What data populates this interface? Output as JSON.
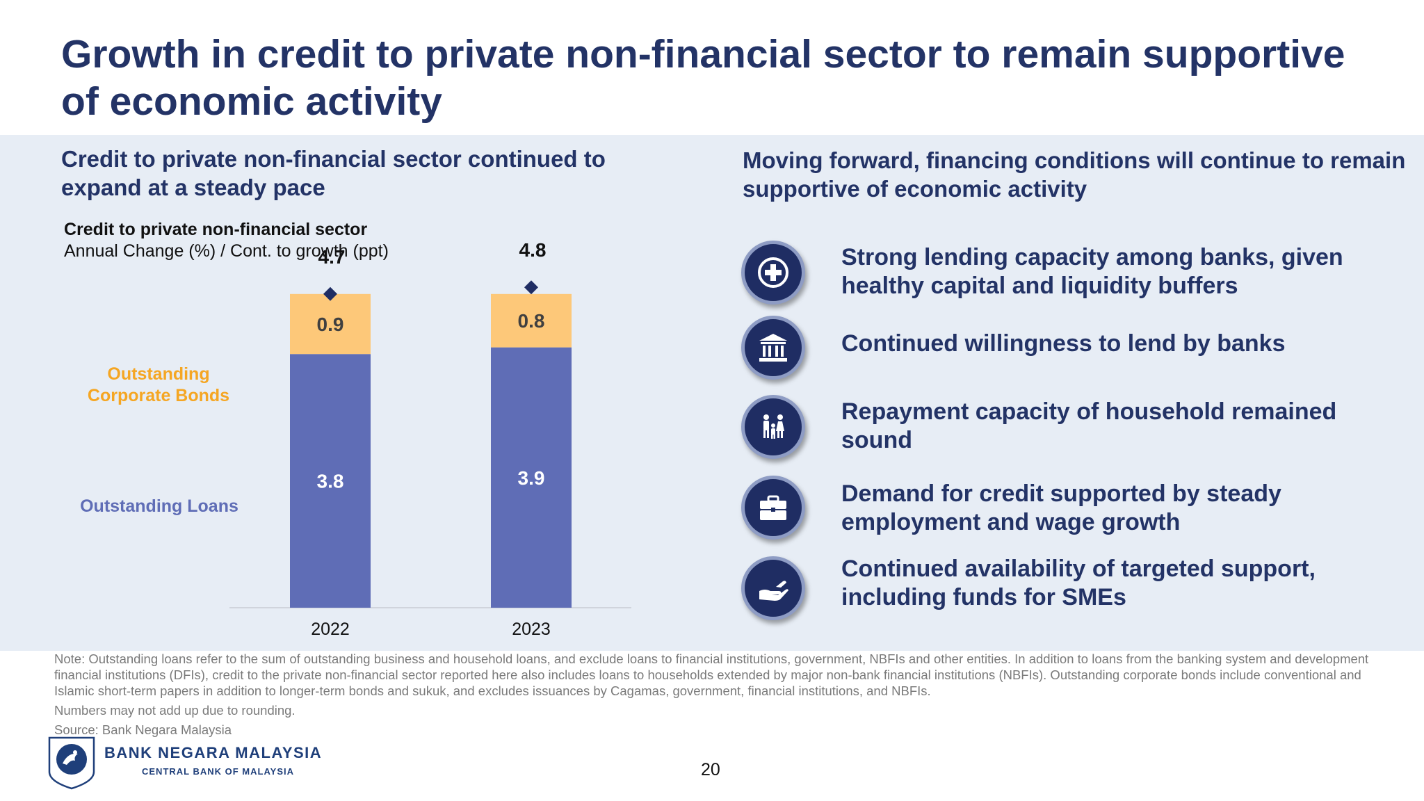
{
  "slide": {
    "title": "Growth in credit to private non-financial sector to remain supportive of economic activity",
    "page_number": "20"
  },
  "left": {
    "heading": "Credit to private non-financial sector continued to expand at a steady pace"
  },
  "right": {
    "heading": "Moving forward, financing conditions will continue to remain supportive of economic activity",
    "items": [
      {
        "icon": "medical-cross-icon",
        "text": "Strong lending capacity among banks, given healthy capital and liquidity buffers"
      },
      {
        "icon": "bank-building-icon",
        "text": "Continued willingness to lend by banks"
      },
      {
        "icon": "family-icon",
        "text": "Repayment capacity of household remained sound"
      },
      {
        "icon": "briefcase-icon",
        "text": "Demand for credit supported by steady employment and wage growth"
      },
      {
        "icon": "helping-hand-icon",
        "text": "Continued availability of targeted support, including funds for SMEs"
      }
    ]
  },
  "chart_data": {
    "type": "bar",
    "stacked": true,
    "title": "Credit to private non-financial sector",
    "subtitle": "Annual Change (%) / Cont. to growth (ppt)",
    "categories": [
      "2022",
      "2023"
    ],
    "series": [
      {
        "name": "Outstanding Loans",
        "values": [
          3.8,
          3.9
        ],
        "color": "#5f6db6",
        "label_color": "#5f6db6",
        "value_text_color": "#ffffff"
      },
      {
        "name": "Outstanding Corporate Bonds",
        "values": [
          0.9,
          0.8
        ],
        "color": "#fdc879",
        "label_color": "#f5a623",
        "value_text_color": "#404040"
      }
    ],
    "totals": [
      4.7,
      4.8
    ],
    "total_marker_color": "#1f2d63",
    "ylim": [
      0,
      5.0
    ],
    "grid": false,
    "legend": "left"
  },
  "notes": {
    "note": "Note: Outstanding loans refer to the sum of outstanding business and household loans, and exclude loans to financial institutions, government, NBFIs and other entities. In addition to loans from the banking system and development financial institutions (DFIs), credit to the private non-financial sector reported here also includes loans to households extended by major non-bank financial institutions (NBFIs). Outstanding corporate bonds include conventional and Islamic short-term papers in addition to longer-term bonds and sukuk, and excludes issuances by Cagamas, government, financial institutions, and NBFIs.",
    "rounding": "Numbers may not add up due to rounding.",
    "source": "Source: Bank Negara Malaysia"
  },
  "logo": {
    "name": "BANK NEGARA MALAYSIA",
    "subtitle": "CENTRAL BANK OF MALAYSIA"
  }
}
